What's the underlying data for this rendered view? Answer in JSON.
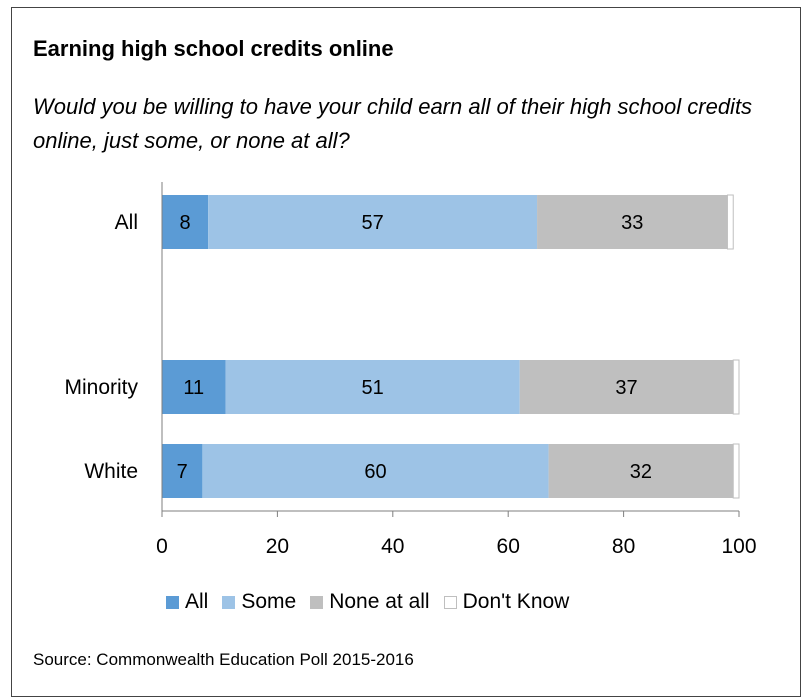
{
  "title": "Earning high school credits online",
  "subtitle": "Would you be willing to have your child earn all of their high school credits online, just some, or none at all?",
  "source": "Source: Commonwealth Education Poll 2015-2016",
  "colors": {
    "All": "#5b9bd5",
    "Some": "#9dc3e6",
    "None at all": "#bfbfbf",
    "Don't Know": "#ffffff"
  },
  "chart_data": {
    "type": "bar",
    "orientation": "horizontal",
    "stacked": true,
    "categories": [
      "All",
      "Minority",
      "White"
    ],
    "series": [
      {
        "name": "All",
        "values": [
          8,
          11,
          7
        ]
      },
      {
        "name": "Some",
        "values": [
          57,
          51,
          60
        ]
      },
      {
        "name": "None at all",
        "values": [
          33,
          37,
          32
        ]
      },
      {
        "name": "Don't Know",
        "values": [
          1,
          1,
          1
        ]
      }
    ],
    "xlim": [
      0,
      100
    ],
    "xticks": [
      0,
      20,
      40,
      60,
      80,
      100
    ],
    "legend_position": "bottom",
    "grid": false
  }
}
